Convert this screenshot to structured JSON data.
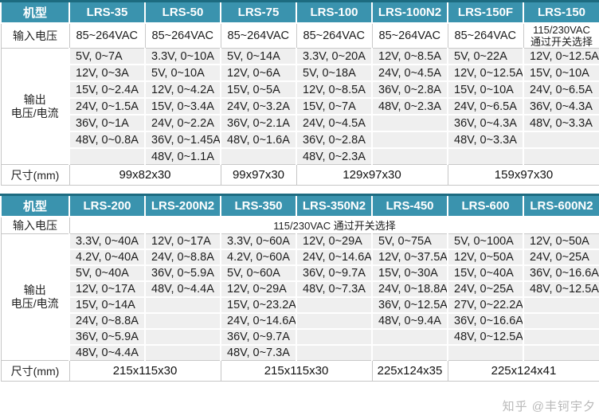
{
  "watermark": "知乎 @丰钶宇夕",
  "colors": {
    "header_bg": "#3a93ae",
    "header_top_border": "#1d6b80",
    "output_cell_bg": "#efefef",
    "grid_border": "#c6c6c6",
    "header_text": "#ffffff",
    "body_text": "#1c1c1c"
  },
  "tables": [
    {
      "model_label": "机型",
      "input_label": "输入电压",
      "output_label": "输出\n电压/电流",
      "dims_label": "尺寸(mm)",
      "models": [
        "LRS-35",
        "LRS-50",
        "LRS-75",
        "LRS-100",
        "LRS-100N2",
        "LRS-150F",
        "LRS-150"
      ],
      "inputs": [
        {
          "span": 1,
          "center": false,
          "text": "85~264VAC"
        },
        {
          "span": 1,
          "center": false,
          "text": "85~264VAC"
        },
        {
          "span": 1,
          "center": false,
          "text": "85~264VAC"
        },
        {
          "span": 1,
          "center": false,
          "text": "85~264VAC"
        },
        {
          "span": 1,
          "center": false,
          "text": "85~264VAC"
        },
        {
          "span": 1,
          "center": false,
          "text": "85~264VAC"
        },
        {
          "span": 1,
          "center": true,
          "text": "115/230VAC\n通过开关选择"
        }
      ],
      "output_rows": [
        [
          "5V, 0~7A",
          "3.3V, 0~10A",
          "5V, 0~14A",
          "3.3V, 0~20A",
          "12V, 0~8.5A",
          "5V, 0~22A",
          "12V, 0~12.5A"
        ],
        [
          "12V, 0~3A",
          "5V, 0~10A",
          "12V, 0~6A",
          "5V, 0~18A",
          "24V, 0~4.5A",
          "12V, 0~12.5A",
          "15V, 0~10A"
        ],
        [
          "15V, 0~2.4A",
          "12V, 0~4.2A",
          "15V, 0~5A",
          "12V, 0~8.5A",
          "36V, 0~2.8A",
          "15V, 0~10A",
          "24V, 0~6.5A"
        ],
        [
          "24V, 0~1.5A",
          "15V, 0~3.4A",
          "24V, 0~3.2A",
          "15V, 0~7A",
          "48V, 0~2.3A",
          "24V, 0~6.5A",
          "36V, 0~4.3A"
        ],
        [
          "36V, 0~1A",
          "24V, 0~2.2A",
          "36V, 0~2.1A",
          "24V, 0~4.5A",
          "",
          "36V, 0~4.3A",
          "48V, 0~3.3A"
        ],
        [
          "48V, 0~0.8A",
          "36V, 0~1.45A",
          "48V, 0~1.6A",
          "36V, 0~2.8A",
          "",
          "48V, 0~3.3A",
          ""
        ],
        [
          "",
          "48V, 0~1.1A",
          "",
          "48V, 0~2.3A",
          "",
          "",
          ""
        ]
      ],
      "dims": [
        {
          "span": 2,
          "text": "99x82x30"
        },
        {
          "span": 1,
          "text": "99x97x30"
        },
        {
          "span": 2,
          "text": "129x97x30"
        },
        {
          "span": 2,
          "text": "159x97x30"
        }
      ]
    },
    {
      "model_label": "机型",
      "input_label": "输入电压",
      "output_label": "输出\n电压/电流",
      "dims_label": "尺寸(mm)",
      "models": [
        "LRS-200",
        "LRS-200N2",
        "LRS-350",
        "LRS-350N2",
        "LRS-450",
        "LRS-600",
        "LRS-600N2"
      ],
      "inputs": [
        {
          "span": 7,
          "center": true,
          "text": "115/230VAC 通过开关选择"
        }
      ],
      "output_rows": [
        [
          "3.3V, 0~40A",
          "12V, 0~17A",
          "3.3V, 0~60A",
          "12V, 0~29A",
          "5V, 0~75A",
          "5V, 0~100A",
          "12V, 0~50A"
        ],
        [
          "4.2V, 0~40A",
          "24V, 0~8.8A",
          "4.2V, 0~60A",
          "24V, 0~14.6A",
          "12V, 0~37.5A",
          "12V, 0~50A",
          "24V, 0~25A"
        ],
        [
          "5V, 0~40A",
          "36V, 0~5.9A",
          "5V, 0~60A",
          "36V, 0~9.7A",
          "15V, 0~30A",
          "15V, 0~40A",
          "36V, 0~16.6A"
        ],
        [
          "12V, 0~17A",
          "48V, 0~4.4A",
          "12V, 0~29A",
          "48V, 0~7.3A",
          "24V, 0~18.8A",
          "24V, 0~25A",
          "48V, 0~12.5A"
        ],
        [
          "15V, 0~14A",
          "",
          "15V, 0~23.2A",
          "",
          "36V, 0~12.5A",
          "27V, 0~22.2A",
          ""
        ],
        [
          "24V, 0~8.8A",
          "",
          "24V, 0~14.6A",
          "",
          "48V, 0~9.4A",
          "36V, 0~16.6A",
          ""
        ],
        [
          "36V, 0~5.9A",
          "",
          "36V, 0~9.7A",
          "",
          "",
          "48V, 0~12.5A",
          ""
        ],
        [
          "48V, 0~4.4A",
          "",
          "48V, 0~7.3A",
          "",
          "",
          "",
          ""
        ]
      ],
      "dims": [
        {
          "span": 2,
          "text": "215x115x30"
        },
        {
          "span": 2,
          "text": "215x115x30"
        },
        {
          "span": 1,
          "text": "225x124x35"
        },
        {
          "span": 2,
          "text": "225x124x41"
        }
      ]
    }
  ]
}
